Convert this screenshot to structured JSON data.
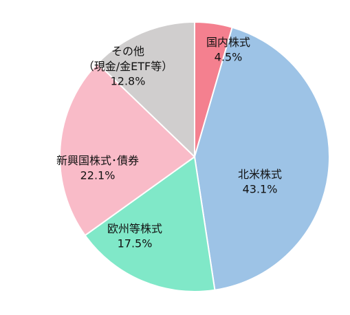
{
  "chart_data": {
    "type": "pie",
    "categories": [
      "国内株式",
      "北米株式",
      "欧州等株式",
      "新興国株式･債券",
      "その他\n（現金/金ETF等）"
    ],
    "values": [
      4.5,
      43.1,
      17.5,
      22.1,
      12.8
    ],
    "value_labels": [
      "4.5%",
      "43.1%",
      "17.5%",
      "22.1%",
      "12.8%"
    ],
    "colors": [
      "#f4808f",
      "#9dc3e6",
      "#80e8c8",
      "#f9bbc8",
      "#d0cece"
    ]
  }
}
